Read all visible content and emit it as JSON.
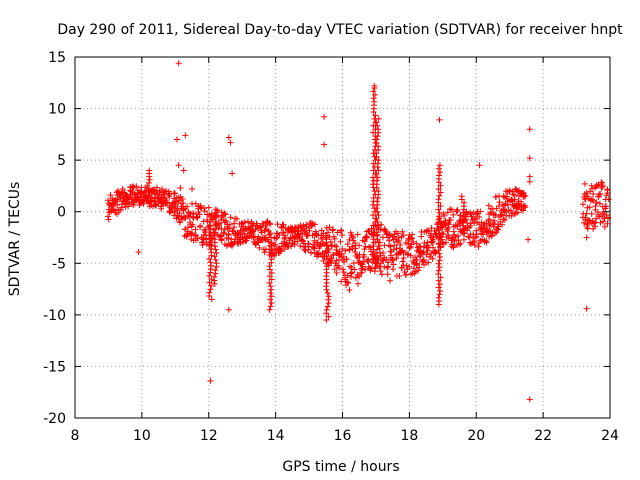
{
  "chart_data": {
    "type": "scatter",
    "title": "Day 290 of 2011, Sidereal Day-to-day VTEC variation (SDTVAR) for receiver hnpt",
    "xlabel": "GPS time / hours",
    "ylabel": "SDTVAR / TECUs",
    "xlim": [
      8,
      24
    ],
    "ylim": [
      -20,
      15
    ],
    "xticks": [
      8,
      10,
      12,
      14,
      16,
      18,
      20,
      22,
      24
    ],
    "yticks": [
      -20,
      -15,
      -10,
      -5,
      0,
      5,
      10,
      15
    ],
    "x_tick_labels": [
      "8",
      "10",
      "12",
      "14",
      "16",
      "18",
      "20",
      "22",
      "24"
    ],
    "y_tick_labels": [
      "-20",
      "-15",
      "-10",
      "-5",
      "0",
      "5",
      "10",
      "15"
    ],
    "grid": true,
    "marker": "+",
    "color": "#ff0000",
    "band": [
      {
        "x": 9.0,
        "lo": -0.8,
        "hi": 1.6
      },
      {
        "x": 9.3,
        "lo": -0.3,
        "hi": 2.2
      },
      {
        "x": 9.6,
        "lo": 0.2,
        "hi": 2.4
      },
      {
        "x": 10.0,
        "lo": 0.6,
        "hi": 2.6
      },
      {
        "x": 10.3,
        "lo": 0.5,
        "hi": 2.5
      },
      {
        "x": 10.6,
        "lo": 0.2,
        "hi": 2.2
      },
      {
        "x": 11.0,
        "lo": -0.5,
        "hi": 1.8
      },
      {
        "x": 11.3,
        "lo": -2.5,
        "hi": 1.2
      },
      {
        "x": 11.6,
        "lo": -3.0,
        "hi": 0.8
      },
      {
        "x": 12.0,
        "lo": -3.5,
        "hi": 0.5
      },
      {
        "x": 12.3,
        "lo": -2.5,
        "hi": 0.3
      },
      {
        "x": 12.6,
        "lo": -3.5,
        "hi": -0.5
      },
      {
        "x": 13.0,
        "lo": -3.0,
        "hi": -0.8
      },
      {
        "x": 13.3,
        "lo": -2.8,
        "hi": -1.0
      },
      {
        "x": 13.6,
        "lo": -4.0,
        "hi": -0.8
      },
      {
        "x": 14.0,
        "lo": -4.5,
        "hi": -1.0
      },
      {
        "x": 14.3,
        "lo": -3.5,
        "hi": -1.2
      },
      {
        "x": 14.6,
        "lo": -3.2,
        "hi": -1.5
      },
      {
        "x": 15.0,
        "lo": -4.0,
        "hi": -1.0
      },
      {
        "x": 15.3,
        "lo": -4.5,
        "hi": -1.3
      },
      {
        "x": 15.6,
        "lo": -5.5,
        "hi": -1.5
      },
      {
        "x": 16.0,
        "lo": -7.0,
        "hi": -1.8
      },
      {
        "x": 16.3,
        "lo": -8.0,
        "hi": -2.0
      },
      {
        "x": 16.6,
        "lo": -6.5,
        "hi": -2.0
      },
      {
        "x": 17.0,
        "lo": -6.0,
        "hi": -1.0
      },
      {
        "x": 17.3,
        "lo": -6.8,
        "hi": -1.5
      },
      {
        "x": 17.6,
        "lo": -6.5,
        "hi": -1.8
      },
      {
        "x": 18.0,
        "lo": -6.2,
        "hi": -2.0
      },
      {
        "x": 18.3,
        "lo": -5.8,
        "hi": -1.8
      },
      {
        "x": 18.6,
        "lo": -5.0,
        "hi": -1.8
      },
      {
        "x": 19.0,
        "lo": -3.5,
        "hi": 0.0
      },
      {
        "x": 19.3,
        "lo": -3.5,
        "hi": 0.5
      },
      {
        "x": 19.6,
        "lo": -3.2,
        "hi": 0.0
      },
      {
        "x": 20.0,
        "lo": -3.5,
        "hi": 0.0
      },
      {
        "x": 20.3,
        "lo": -3.0,
        "hi": 0.5
      },
      {
        "x": 20.6,
        "lo": -2.0,
        "hi": 1.5
      },
      {
        "x": 21.0,
        "lo": -0.5,
        "hi": 2.2
      },
      {
        "x": 21.3,
        "lo": 0.0,
        "hi": 2.5
      },
      {
        "x": 21.5,
        "lo": -0.5,
        "hi": 1.5
      }
    ],
    "band2": [
      {
        "x": 23.2,
        "lo": -1.8,
        "hi": 1.8
      },
      {
        "x": 23.5,
        "lo": -2.2,
        "hi": 2.8
      },
      {
        "x": 23.8,
        "lo": -2.0,
        "hi": 3.0
      },
      {
        "x": 24.0,
        "lo": -1.5,
        "hi": 2.0
      }
    ],
    "spikes": [
      {
        "x": 10.2,
        "lo": 1.0,
        "hi": 4.0
      },
      {
        "x": 12.05,
        "lo": -8.5,
        "hi": -1.0
      },
      {
        "x": 12.2,
        "lo": -7.0,
        "hi": -1.0
      },
      {
        "x": 13.85,
        "lo": -9.5,
        "hi": -3.0
      },
      {
        "x": 15.55,
        "lo": -10.5,
        "hi": -2.0
      },
      {
        "x": 16.95,
        "lo": -5.0,
        "hi": 12.0
      },
      {
        "x": 17.05,
        "lo": -5.0,
        "hi": 9.0
      },
      {
        "x": 18.9,
        "lo": -9.0,
        "hi": 4.5
      },
      {
        "x": 19.6,
        "lo": -2.0,
        "hi": 1.5
      }
    ],
    "outliers": [
      {
        "x": 11.1,
        "y": 14.4
      },
      {
        "x": 11.05,
        "y": 7.0
      },
      {
        "x": 11.3,
        "y": 7.4
      },
      {
        "x": 11.1,
        "y": 4.5
      },
      {
        "x": 11.25,
        "y": 4.0
      },
      {
        "x": 11.15,
        "y": 2.3
      },
      {
        "x": 11.5,
        "y": 2.2
      },
      {
        "x": 9.9,
        "y": -3.9
      },
      {
        "x": 12.05,
        "y": -16.4
      },
      {
        "x": 12.6,
        "y": 7.2
      },
      {
        "x": 12.65,
        "y": 6.7
      },
      {
        "x": 12.7,
        "y": 3.7
      },
      {
        "x": 12.6,
        "y": -9.5
      },
      {
        "x": 15.45,
        "y": 9.2
      },
      {
        "x": 15.45,
        "y": 6.5
      },
      {
        "x": 16.95,
        "y": 12.2
      },
      {
        "x": 18.9,
        "y": 8.9
      },
      {
        "x": 20.1,
        "y": 4.5
      },
      {
        "x": 21.6,
        "y": 8.0
      },
      {
        "x": 21.6,
        "y": 5.2
      },
      {
        "x": 21.6,
        "y": 3.4
      },
      {
        "x": 21.6,
        "y": 2.9
      },
      {
        "x": 21.55,
        "y": -2.7
      },
      {
        "x": 21.6,
        "y": -18.2
      },
      {
        "x": 23.25,
        "y": 2.7
      },
      {
        "x": 23.3,
        "y": -2.5
      },
      {
        "x": 23.3,
        "y": -9.4
      }
    ]
  }
}
